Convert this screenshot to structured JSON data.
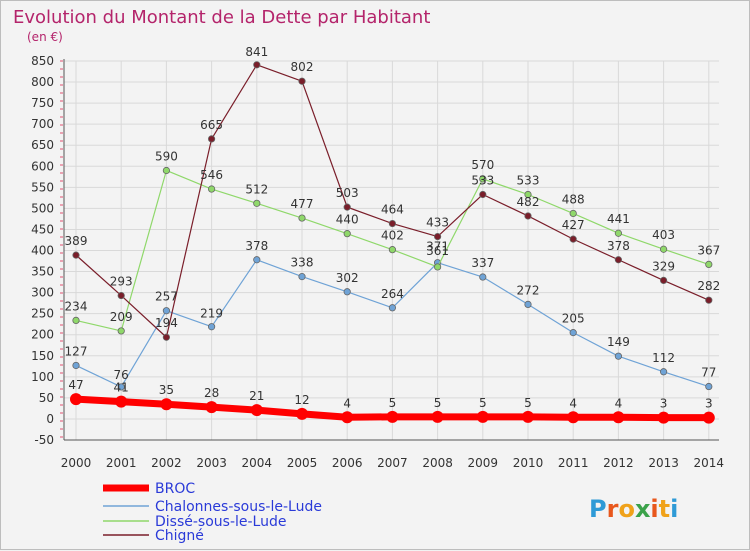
{
  "chart_data": {
    "type": "line",
    "title": "Evolution du Montant de la Dette par Habitant",
    "subtitle": "(en €)",
    "categories": [
      "2000",
      "2001",
      "2002",
      "2003",
      "2004",
      "2005",
      "2006",
      "2007",
      "2008",
      "2009",
      "2010",
      "2011",
      "2012",
      "2013",
      "2014"
    ],
    "ylim": [
      -50,
      850
    ],
    "yticks": [
      -50,
      0,
      50,
      100,
      150,
      200,
      250,
      300,
      350,
      400,
      450,
      500,
      550,
      600,
      650,
      700,
      750,
      800,
      850
    ],
    "grid": true,
    "legend_position": "bottom-left",
    "series": [
      {
        "name": "BROC",
        "color": "#ff0000",
        "width": 7,
        "values": [
          47,
          41,
          35,
          28,
          21,
          12,
          4,
          5,
          5,
          5,
          5,
          4,
          4,
          3,
          3
        ]
      },
      {
        "name": "Chalonnes-sous-le-Lude",
        "color": "#6fa3d6",
        "width": 1.2,
        "values": [
          127,
          76,
          257,
          219,
          378,
          338,
          302,
          264,
          371,
          337,
          272,
          205,
          149,
          112,
          77
        ]
      },
      {
        "name": "Dissé-sous-le-Lude",
        "color": "#8fd86a",
        "width": 1.2,
        "values": [
          234,
          209,
          590,
          546,
          512,
          477,
          440,
          402,
          361,
          570,
          533,
          488,
          441,
          403,
          367
        ]
      },
      {
        "name": "Chigné",
        "color": "#7a1e2a",
        "width": 1.2,
        "values": [
          389,
          293,
          194,
          665,
          841,
          802,
          503,
          464,
          433,
          533,
          482,
          427,
          378,
          329,
          282
        ]
      }
    ]
  },
  "logo": {
    "letters": [
      "P",
      "r",
      "o",
      "x",
      "i",
      "t",
      "i"
    ],
    "colors": [
      "#2e9ad6",
      "#e8571c",
      "#f0a21a",
      "#3ba24a",
      "#e8571c",
      "#f0a21a",
      "#2e9ad6"
    ]
  }
}
